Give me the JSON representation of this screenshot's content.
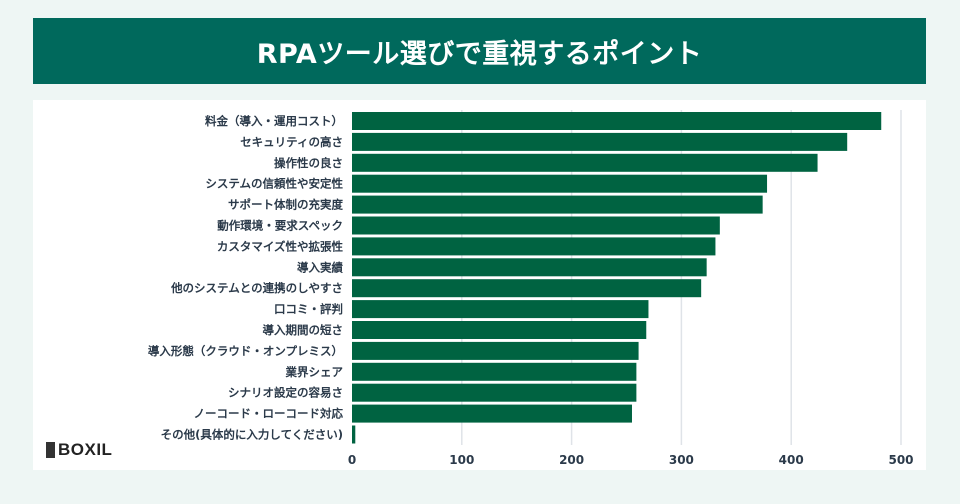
{
  "chart_data": {
    "type": "bar",
    "orientation": "horizontal",
    "title": "RPAツール選びで重視するポイント",
    "categories": [
      "料金（導入・運用コスト）",
      "セキュリティの高さ",
      "操作性の良さ",
      "システムの信頼性や安定性",
      "サポート体制の充実度",
      "動作環境・要求スペック",
      "カスタマイズ性や拡張性",
      "導入実績",
      "他のシステムとの連携のしやすさ",
      "口コミ・評判",
      "導入期間の短さ",
      "導入形態（クラウド・オンプレミス）",
      "業界シェア",
      "シナリオ設定の容易さ",
      "ノーコード・ローコード対応",
      "その他(具体的に入力してください)"
    ],
    "values": [
      482,
      451,
      424,
      378,
      374,
      335,
      331,
      323,
      318,
      270,
      268,
      261,
      259,
      259,
      255,
      3
    ],
    "xlim": [
      0,
      500
    ],
    "xticks": [
      "0",
      "100",
      "200",
      "300",
      "400",
      "500"
    ],
    "xlabel": "",
    "ylabel": "",
    "grid": true,
    "bar_color": "#006341",
    "banner_color": "#00695c"
  },
  "logo": "BOXIL"
}
